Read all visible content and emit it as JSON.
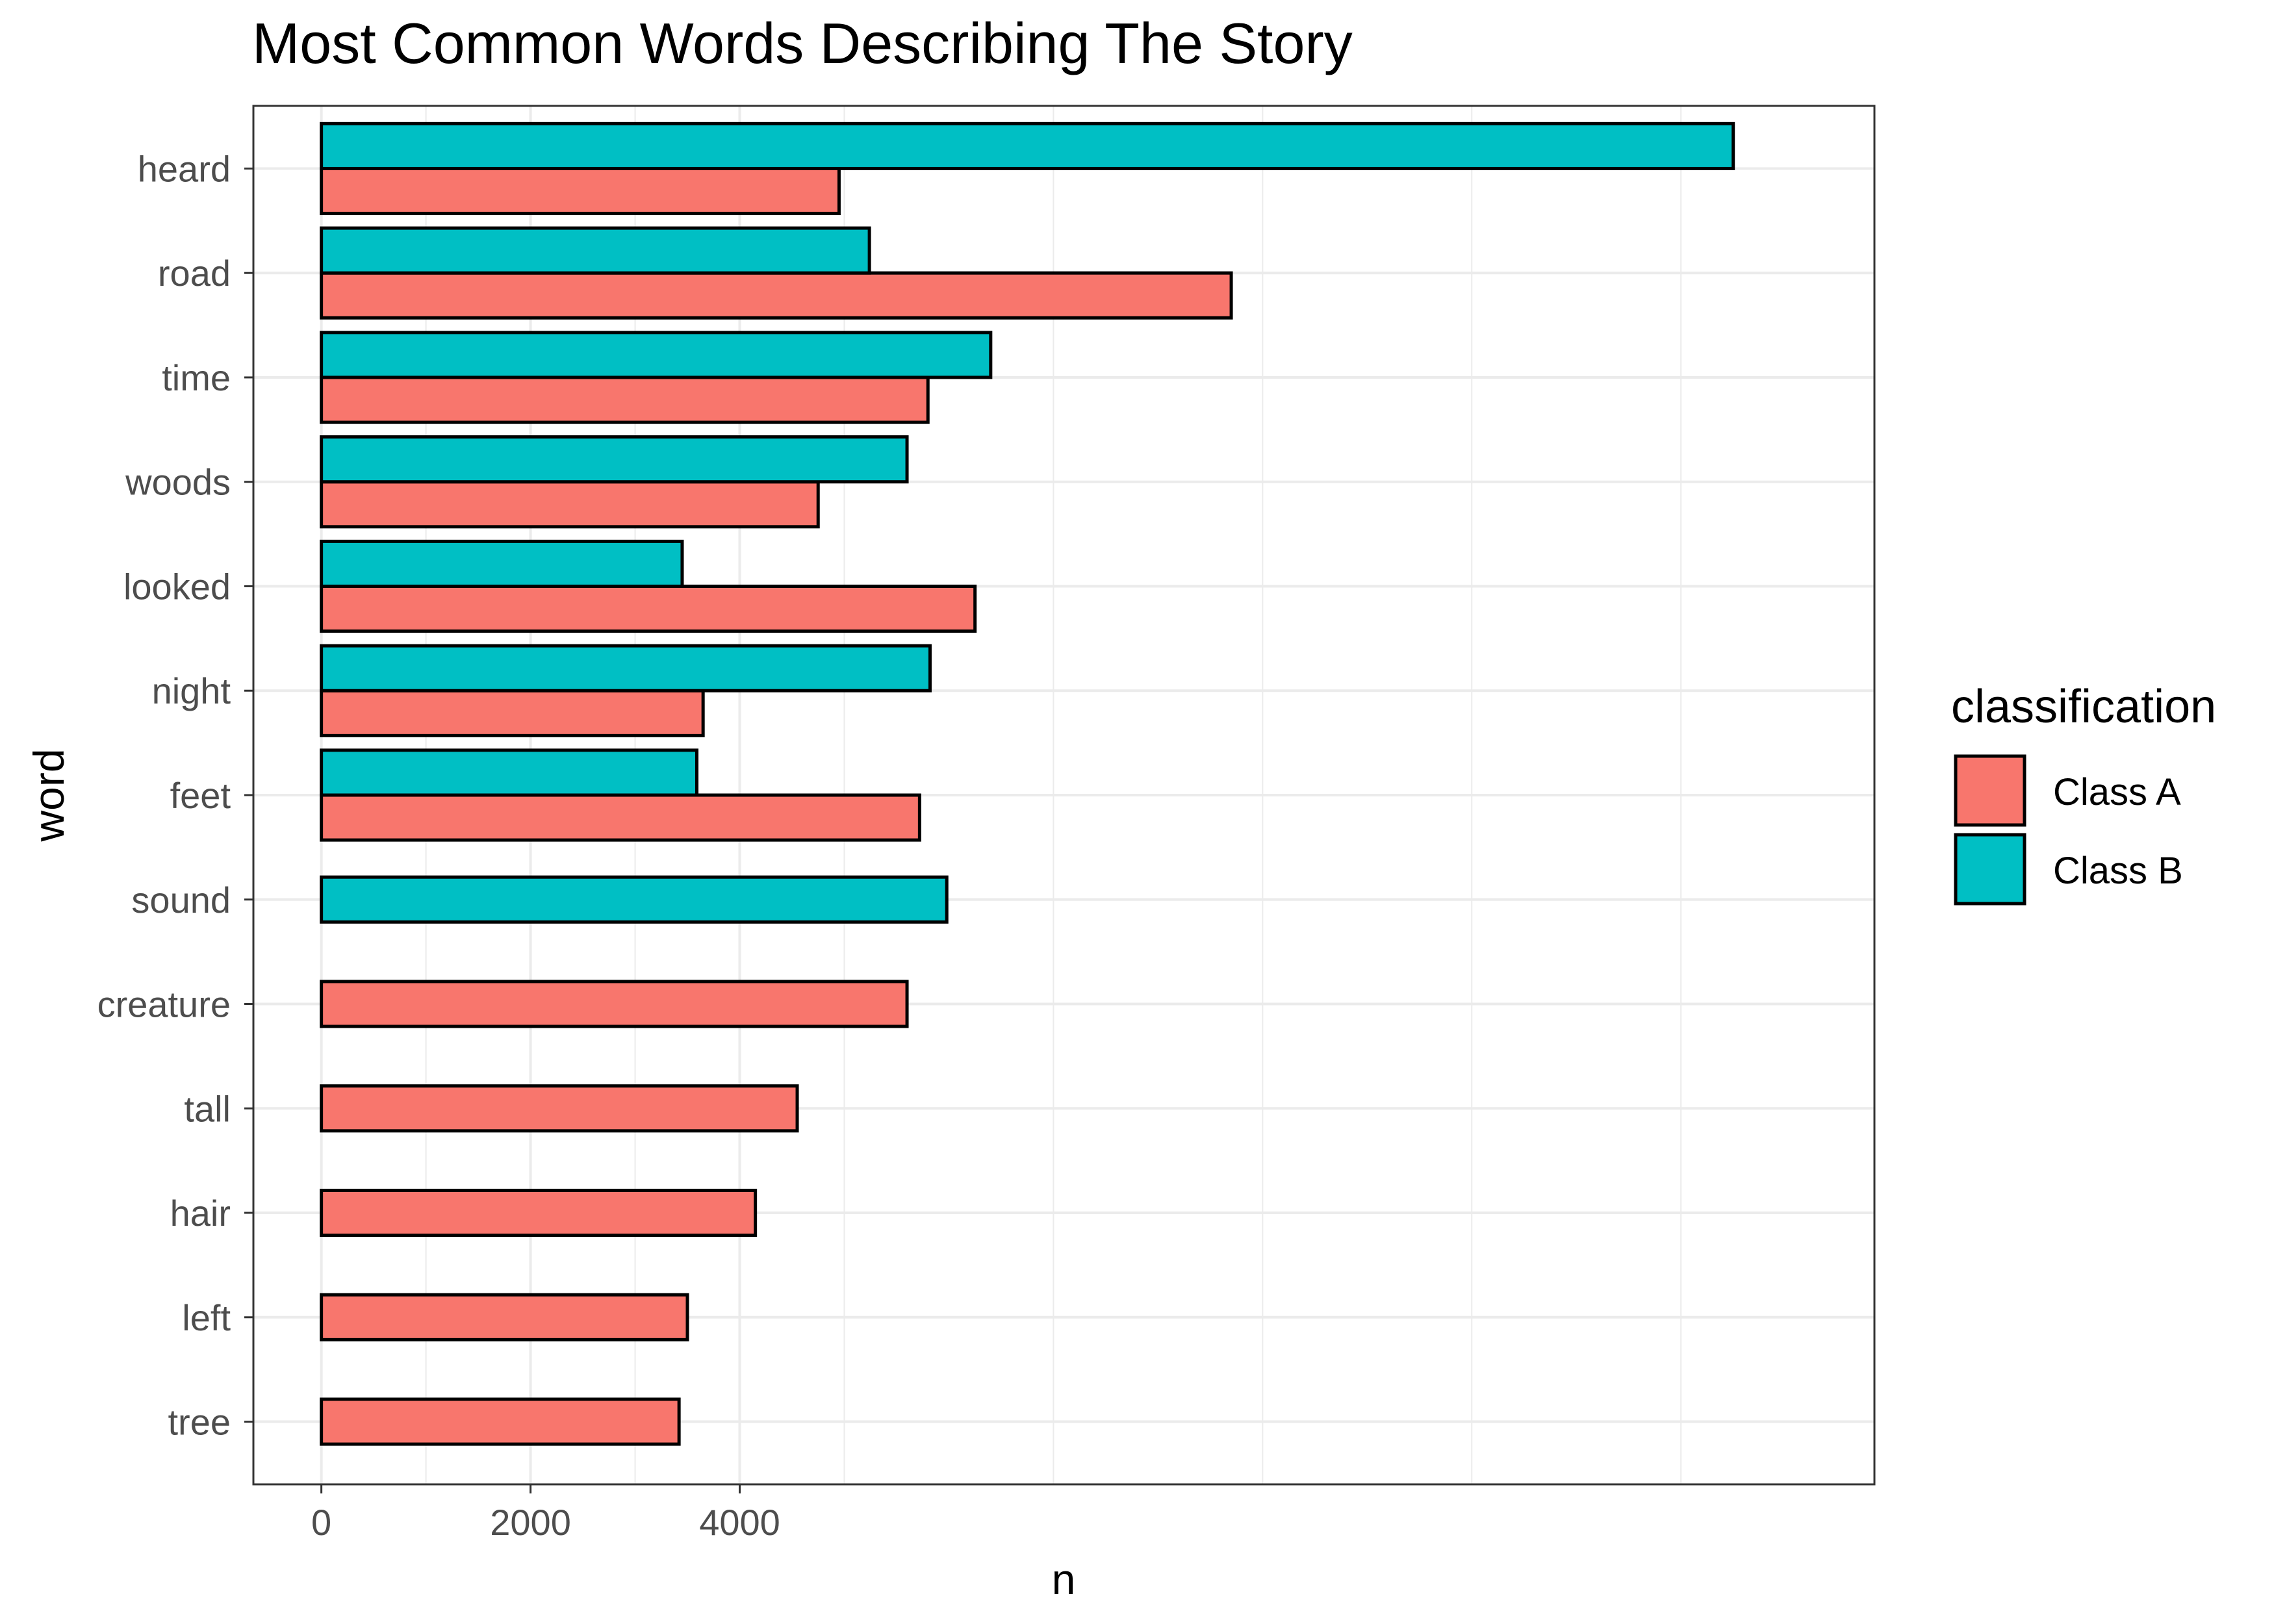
{
  "chart_data": {
    "type": "bar",
    "orientation": "horizontal",
    "title": "Most Common Words Describing The Story",
    "xlabel": "n",
    "ylabel": "word",
    "xlim": [
      -650,
      14850
    ],
    "xticks": [
      0,
      2000,
      4000
    ],
    "categories": [
      "heard",
      "road",
      "time",
      "woods",
      "looked",
      "night",
      "feet",
      "sound",
      "creature",
      "tall",
      "hair",
      "left",
      "tree"
    ],
    "series": [
      {
        "name": "Class A",
        "color": "#F8766D",
        "values": [
          4950,
          8700,
          5800,
          4750,
          6250,
          3650,
          5720,
          null,
          5600,
          4550,
          4150,
          3500,
          3420
        ]
      },
      {
        "name": "Class B",
        "color": "#00BFC4",
        "values": [
          13500,
          5240,
          6400,
          5600,
          3450,
          5820,
          3590,
          5980,
          null,
          null,
          null,
          null,
          null
        ]
      }
    ],
    "grid": true,
    "legend": {
      "title": "classification",
      "position": "right"
    }
  }
}
